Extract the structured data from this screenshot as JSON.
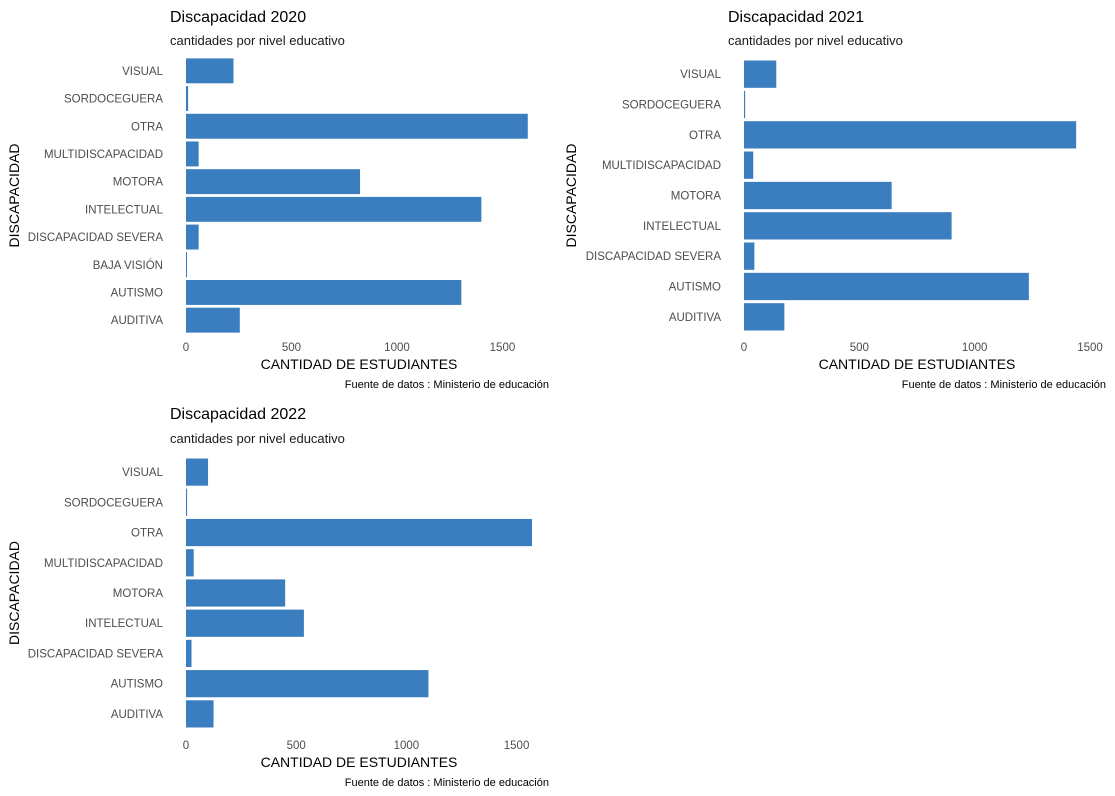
{
  "colors": {
    "bar": "#3a7ebf",
    "background": "#ffffff"
  },
  "chart_data": [
    {
      "type": "bar",
      "orientation": "horizontal",
      "title": "Discapacidad 2020",
      "subtitle": "cantidades por nivel educativo",
      "xlabel": "CANTIDAD DE ESTUDIANTES",
      "ylabel": "DISCAPACIDAD",
      "caption": "Fuente de datos : Ministerio de educación",
      "xlim": [
        0,
        1640
      ],
      "xticks": [
        0,
        500,
        1000,
        1500
      ],
      "grid": false,
      "categories": [
        "VISUAL",
        "SORDOCEGUERA",
        "OTRA",
        "MULTIDISCAPACIDAD",
        "MOTORA",
        "INTELECTUAL",
        "DISCAPACIDAD SEVERA",
        "BAJA VISIÓN",
        "AUTISMO",
        "AUDITIVA"
      ],
      "values": [
        225,
        10,
        1620,
        60,
        825,
        1400,
        60,
        5,
        1305,
        255
      ]
    },
    {
      "type": "bar",
      "orientation": "horizontal",
      "title": "Discapacidad 2021",
      "subtitle": "cantidades por nivel educativo",
      "xlabel": "CANTIDAD DE ESTUDIANTES",
      "ylabel": "DISCAPACIDAD",
      "caption": "Fuente de datos : Ministerio de educación",
      "xlim": [
        0,
        1500
      ],
      "xticks": [
        0,
        500,
        1000,
        1500
      ],
      "grid": false,
      "categories": [
        "VISUAL",
        "SORDOCEGUERA",
        "OTRA",
        "MULTIDISCAPACIDAD",
        "MOTORA",
        "INTELECTUAL",
        "DISCAPACIDAD SEVERA",
        "AUTISMO",
        "AUDITIVA"
      ],
      "values": [
        140,
        5,
        1440,
        40,
        640,
        900,
        45,
        1235,
        175
      ]
    },
    {
      "type": "bar",
      "orientation": "horizontal",
      "title": "Discapacidad 2022",
      "subtitle": "cantidades por nivel educativo",
      "xlabel": "CANTIDAD DE ESTUDIANTES",
      "ylabel": "DISCAPACIDAD",
      "caption": "Fuente de datos : Ministerio de educación",
      "xlim": [
        0,
        1570
      ],
      "xticks": [
        0,
        500,
        1000,
        1500
      ],
      "grid": false,
      "categories": [
        "VISUAL",
        "SORDOCEGUERA",
        "OTRA",
        "MULTIDISCAPACIDAD",
        "MOTORA",
        "INTELECTUAL",
        "DISCAPACIDAD SEVERA",
        "AUTISMO",
        "AUDITIVA"
      ],
      "values": [
        100,
        5,
        1570,
        35,
        450,
        535,
        25,
        1100,
        125
      ]
    }
  ]
}
